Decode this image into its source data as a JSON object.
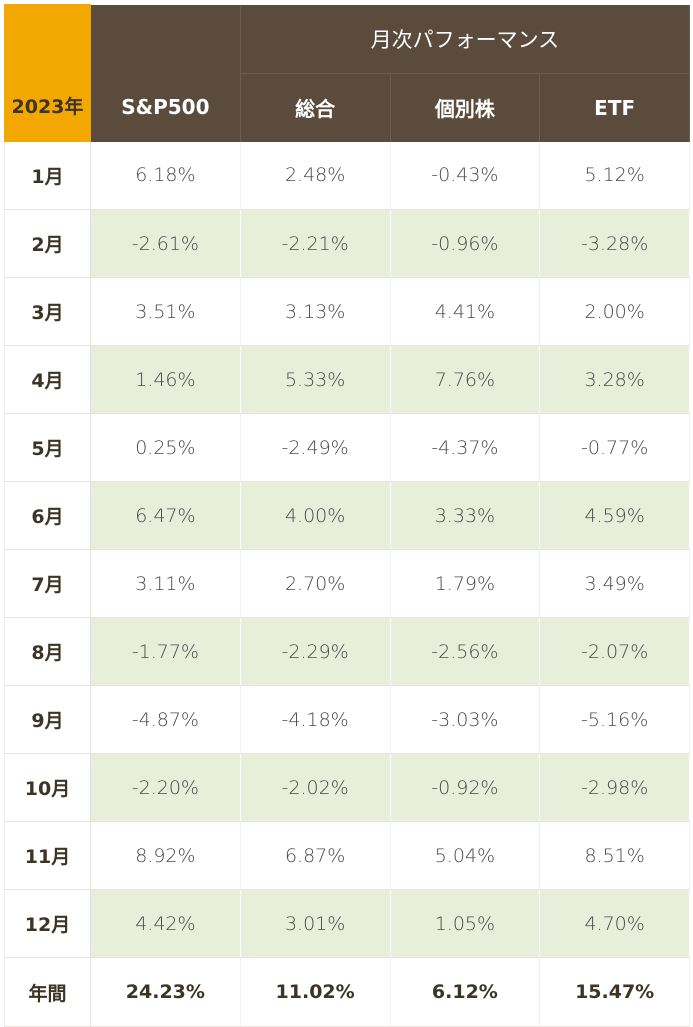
{
  "header": {
    "year_label": "2023年",
    "group_title": "月次パフォーマンス",
    "columns": [
      "S&P500",
      "総合",
      "個別株",
      "ETF"
    ]
  },
  "rows": [
    {
      "label": "1月",
      "values": [
        "6.18%",
        "2.48%",
        "-0.43%",
        "5.12%"
      ]
    },
    {
      "label": "2月",
      "values": [
        "-2.61%",
        "-2.21%",
        "-0.96%",
        "-3.28%"
      ]
    },
    {
      "label": "3月",
      "values": [
        "3.51%",
        "3.13%",
        "4.41%",
        "2.00%"
      ]
    },
    {
      "label": "4月",
      "values": [
        "1.46%",
        "5.33%",
        "7.76%",
        "3.28%"
      ]
    },
    {
      "label": "5月",
      "values": [
        "0.25%",
        "-2.49%",
        "-4.37%",
        "-0.77%"
      ]
    },
    {
      "label": "6月",
      "values": [
        "6.47%",
        "4.00%",
        "3.33%",
        "4.59%"
      ]
    },
    {
      "label": "7月",
      "values": [
        "3.11%",
        "2.70%",
        "1.79%",
        "3.49%"
      ]
    },
    {
      "label": "8月",
      "values": [
        "-1.77%",
        "-2.29%",
        "-2.56%",
        "-2.07%"
      ]
    },
    {
      "label": "9月",
      "values": [
        "-4.87%",
        "-4.18%",
        "-3.03%",
        "-5.16%"
      ]
    },
    {
      "label": "10月",
      "values": [
        "-2.20%",
        "-2.02%",
        "-0.92%",
        "-2.98%"
      ]
    },
    {
      "label": "11月",
      "values": [
        "8.92%",
        "6.87%",
        "5.04%",
        "8.51%"
      ]
    },
    {
      "label": "12月",
      "values": [
        "4.42%",
        "3.01%",
        "1.05%",
        "4.70%"
      ]
    }
  ],
  "annual": {
    "label": "年間",
    "values": [
      "24.23%",
      "11.02%",
      "6.12%",
      "15.47%"
    ]
  },
  "colors": {
    "year_header_bg": "#f2a800",
    "header_bg": "#5a4b3d",
    "alt_row_bg": "#e7eed9"
  }
}
